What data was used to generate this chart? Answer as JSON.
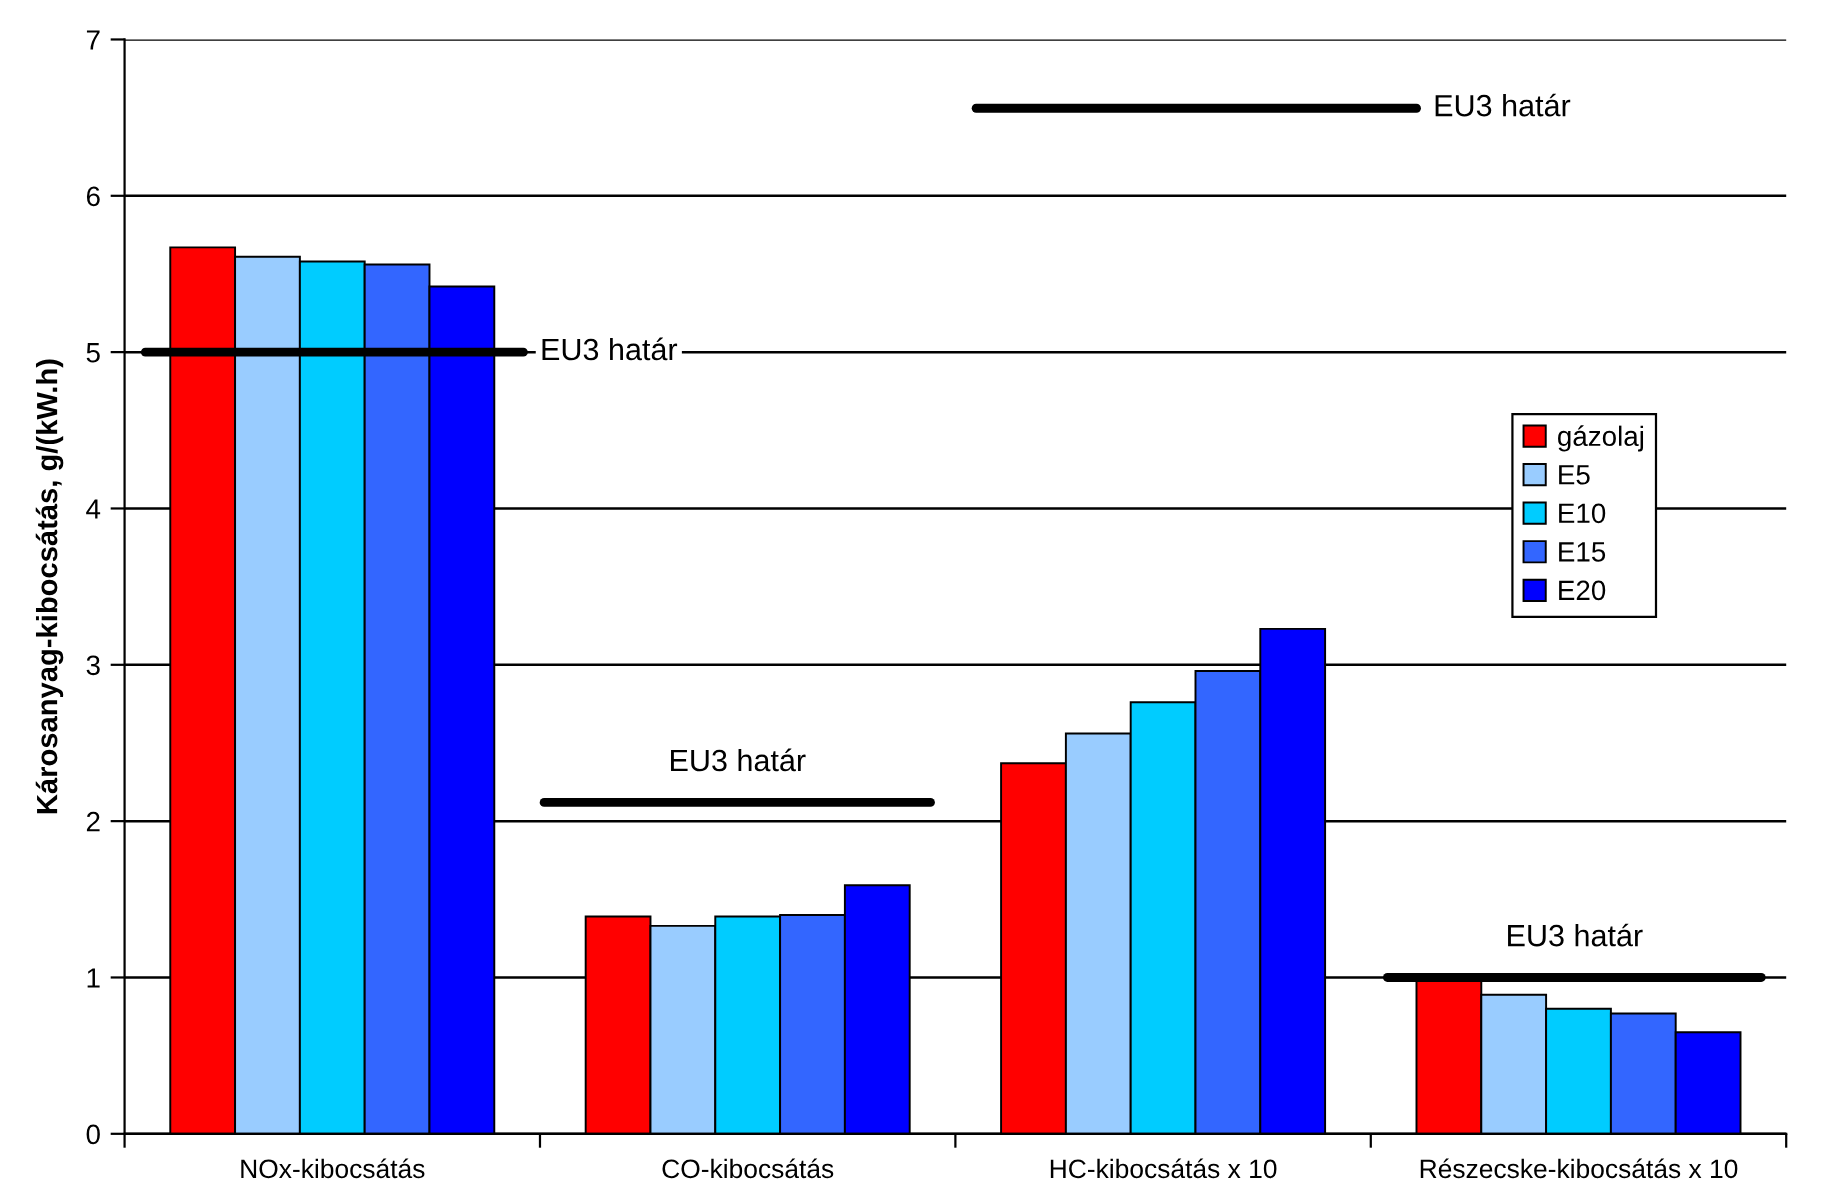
{
  "chart_data": {
    "type": "bar",
    "ylabel": "Károsanyag-kibocsátás, g/(kW.h)",
    "categories": [
      "NOx-kibocsátás",
      "CO-kibocsátás",
      "HC-kibocsátás x 10",
      "Részecske-kibocsátás x 10"
    ],
    "series": [
      {
        "name": "gázolaj",
        "color": "#ff0000",
        "values": [
          5.67,
          1.39,
          2.37,
          1.0
        ]
      },
      {
        "name": "E5",
        "color": "#99ccff",
        "values": [
          5.61,
          1.33,
          2.56,
          0.89
        ]
      },
      {
        "name": "E10",
        "color": "#00ccff",
        "values": [
          5.58,
          1.39,
          2.76,
          0.8
        ]
      },
      {
        "name": "E15",
        "color": "#3366ff",
        "values": [
          5.56,
          1.4,
          2.96,
          0.77
        ]
      },
      {
        "name": "E20",
        "color": "#0000ff",
        "values": [
          5.42,
          1.59,
          3.23,
          0.65
        ]
      }
    ],
    "ylim": [
      0,
      7
    ],
    "yticks": [
      0,
      1,
      2,
      3,
      4,
      5,
      6,
      7
    ],
    "grid": "y",
    "legend": "right",
    "ref_lines": [
      {
        "axis": "y",
        "value": 5,
        "label": "EU3 határ",
        "color": "#000000"
      },
      {
        "axis": "y",
        "value": 2.12,
        "label": "EU3 határ",
        "color": "#000000"
      },
      {
        "axis": "y",
        "value": 6.56,
        "label": "EU3 határ",
        "color": "#000000"
      },
      {
        "axis": "y",
        "value": 1.0,
        "label": "EU3 határ",
        "color": "#000000"
      }
    ]
  }
}
